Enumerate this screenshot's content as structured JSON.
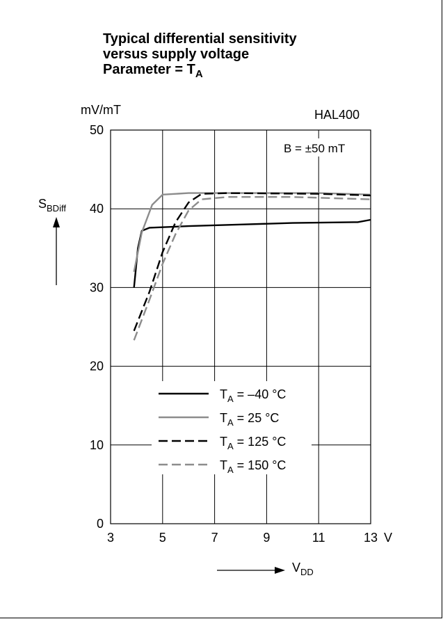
{
  "chart_data": {
    "type": "line",
    "title_lines": [
      "Typical differential sensitivity",
      "versus supply voltage"
    ],
    "parameter": {
      "label": "Parameter = T",
      "subscript": "A"
    },
    "device": "HAL400",
    "condition": "B = ±50 mT",
    "ylabel": {
      "main": "S",
      "sub": "BDiff"
    },
    "yunit": "mV/mT",
    "xlabel": {
      "main": "V",
      "sub": "DD"
    },
    "xunit": "V",
    "xlim": [
      3,
      13
    ],
    "ylim": [
      0,
      50
    ],
    "xticks": [
      3,
      5,
      7,
      9,
      11,
      13
    ],
    "yticks": [
      0,
      10,
      20,
      30,
      40,
      50
    ],
    "grid": true,
    "legend_position": "lower-center",
    "series": [
      {
        "name_main": "T",
        "name_sub": "A",
        "name_rest": " = –40 °C",
        "color": "#000000",
        "dash": "solid",
        "points": [
          [
            3.9,
            30
          ],
          [
            4.05,
            35
          ],
          [
            4.2,
            37.2
          ],
          [
            4.5,
            37.6
          ],
          [
            6,
            37.8
          ],
          [
            8,
            38
          ],
          [
            10,
            38.2
          ],
          [
            12.5,
            38.3
          ],
          [
            13,
            38.6
          ]
        ]
      },
      {
        "name_main": "T",
        "name_sub": "A",
        "name_rest": " = 25 °C",
        "color": "#8c8c8c",
        "dash": "solid",
        "points": [
          [
            3.9,
            32
          ],
          [
            4.2,
            37
          ],
          [
            4.6,
            40.5
          ],
          [
            5,
            41.8
          ],
          [
            6,
            42
          ],
          [
            9,
            42
          ],
          [
            11,
            42
          ],
          [
            13,
            41.8
          ]
        ]
      },
      {
        "name_main": "T",
        "name_sub": "A",
        "name_rest": " = 125 °C",
        "color": "#000000",
        "dash": "dashed",
        "points": [
          [
            3.9,
            24.5
          ],
          [
            4.5,
            29.5
          ],
          [
            5,
            34.5
          ],
          [
            5.5,
            38.3
          ],
          [
            6,
            40.8
          ],
          [
            6.5,
            41.9
          ],
          [
            7.5,
            42
          ],
          [
            11,
            41.9
          ],
          [
            13,
            41.7
          ]
        ]
      },
      {
        "name_main": "T",
        "name_sub": "A",
        "name_rest": " = 150 °C",
        "color": "#8c8c8c",
        "dash": "dashed",
        "points": [
          [
            3.9,
            23.3
          ],
          [
            4.5,
            28.5
          ],
          [
            5,
            33
          ],
          [
            5.5,
            36.8
          ],
          [
            6,
            39.8
          ],
          [
            6.5,
            41.2
          ],
          [
            7.5,
            41.5
          ],
          [
            10,
            41.5
          ],
          [
            13,
            41.2
          ]
        ]
      }
    ]
  }
}
